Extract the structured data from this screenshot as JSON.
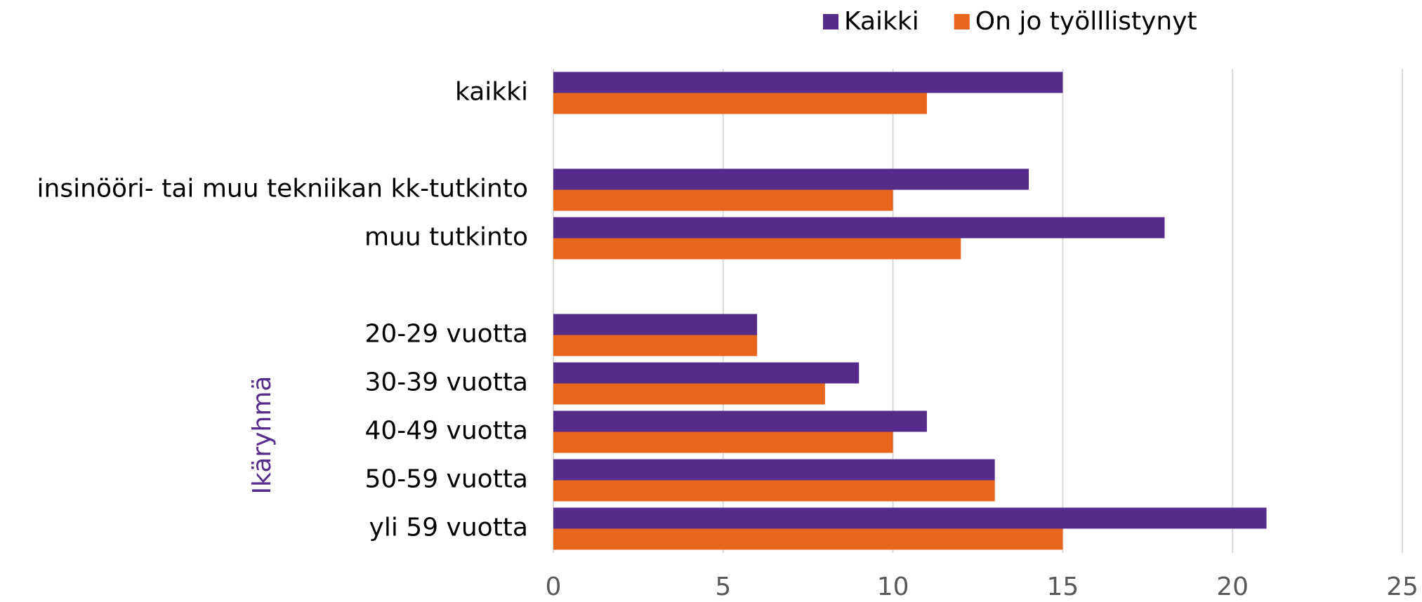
{
  "chart_data": {
    "type": "barh",
    "categories": [
      "kaikki",
      null,
      "insinööri- tai muu tekniikan kk-tutkinto",
      "muu tutkinto",
      null,
      "20-29 vuotta",
      "30-39 vuotta",
      "40-49 vuotta",
      "50-59 vuotta",
      "yli 59 vuotta"
    ],
    "series": [
      {
        "name": "Kaikki",
        "color": "#552c8a",
        "values": [
          15,
          null,
          14,
          18,
          null,
          6,
          9,
          11,
          13,
          21
        ]
      },
      {
        "name": "On jo työlllistynyt",
        "color": "#e8651e",
        "values": [
          11,
          null,
          10,
          12,
          null,
          6,
          8,
          10,
          13,
          15
        ]
      }
    ],
    "group_label": "Ikäryhmä",
    "xlim": [
      0,
      25
    ],
    "xticks": [
      0,
      5,
      10,
      15,
      20,
      25
    ],
    "grid": true,
    "legend": "top"
  }
}
